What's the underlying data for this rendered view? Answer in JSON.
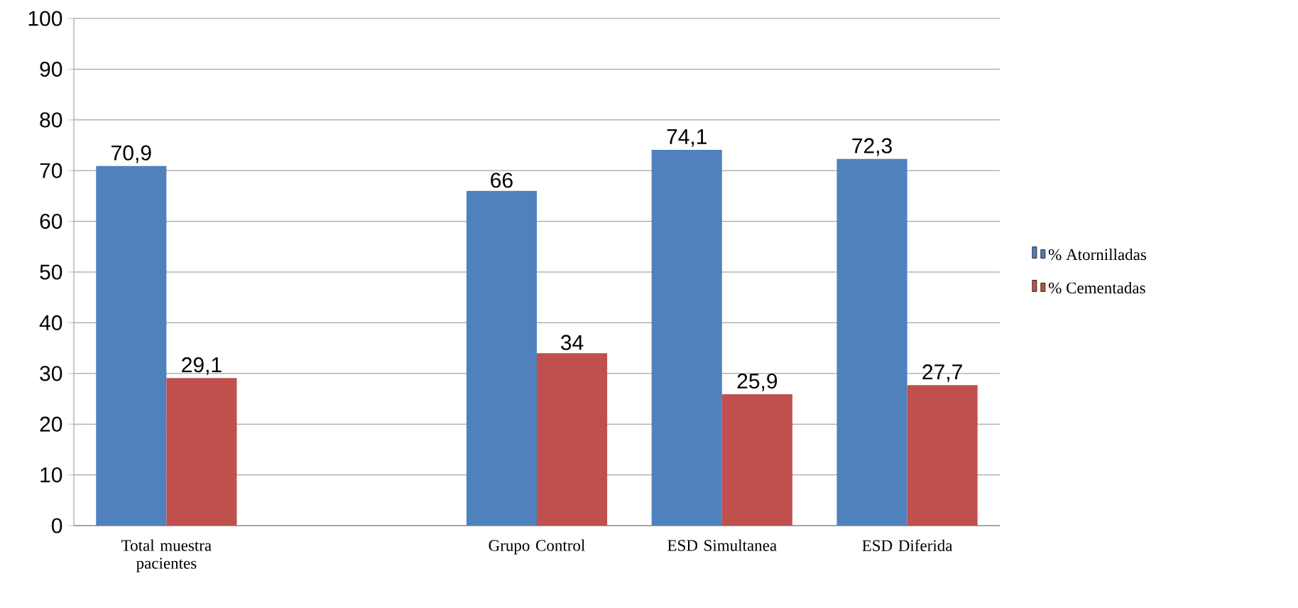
{
  "chart_data": {
    "type": "bar",
    "categories": [
      "Total muestra pacientes",
      null,
      "Grupo Control",
      "ESD Simultanea",
      "ESD Diferida"
    ],
    "series": [
      {
        "name": "% Atornilladas",
        "color": "#4f81bd",
        "values": [
          70.9,
          null,
          66,
          74.1,
          72.3
        ],
        "value_labels": [
          "70,9",
          null,
          "66",
          "74,1",
          "72,3"
        ]
      },
      {
        "name": "% Cementadas",
        "color": "#c0504d",
        "values": [
          29.1,
          null,
          34,
          25.9,
          27.7
        ],
        "value_labels": [
          "29,1",
          null,
          "34",
          "25,9",
          "27,7"
        ]
      }
    ],
    "ylim": [
      0,
      100
    ],
    "yticks": [
      0,
      10,
      20,
      30,
      40,
      50,
      60,
      70,
      80,
      90,
      100
    ],
    "grid": "y",
    "legend": "right"
  }
}
